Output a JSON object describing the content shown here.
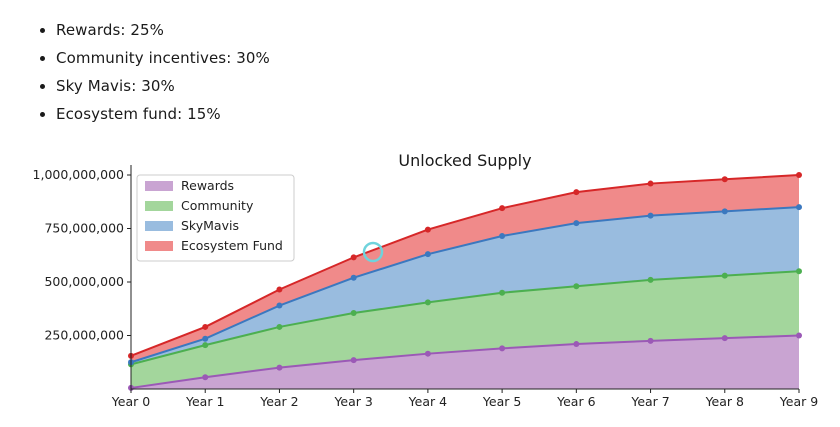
{
  "bullets": [
    {
      "label": "Rewards: 25%"
    },
    {
      "label": "Community incentives: 30%"
    },
    {
      "label": "Sky Mavis: 30%"
    },
    {
      "label": "Ecosystem fund: 15%"
    }
  ],
  "chart_data": {
    "type": "area",
    "stacked": true,
    "title": "Unlocked Supply",
    "xlabel": "",
    "ylabel": "",
    "categories": [
      "Year 0",
      "Year 1",
      "Year 2",
      "Year 3",
      "Year 4",
      "Year 5",
      "Year 6",
      "Year 7",
      "Year 8",
      "Year 9"
    ],
    "ylim": [
      0,
      1000000000
    ],
    "yticks": [
      250000000,
      500000000,
      750000000,
      1000000000
    ],
    "ytick_labels": [
      "250,000,000",
      "500,000,000",
      "750,000,000",
      "1,000,000,000"
    ],
    "grid": false,
    "legend_position": "top-left",
    "series": [
      {
        "name": "Rewards",
        "color": "#c9a4d2",
        "line_color": "#9b59b6",
        "values": [
          5000000,
          55000000,
          100000000,
          135000000,
          165000000,
          190000000,
          210000000,
          225000000,
          237500000,
          250000000
        ]
      },
      {
        "name": "Community",
        "color": "#a3d69c",
        "line_color": "#4caf50",
        "values": [
          110000000,
          150000000,
          190000000,
          220000000,
          240000000,
          260000000,
          270000000,
          285000000,
          292500000,
          300000000
        ]
      },
      {
        "name": "SkyMavis",
        "color": "#99bcdf",
        "line_color": "#3b78bf",
        "values": [
          10000000,
          30000000,
          100000000,
          165000000,
          225000000,
          265000000,
          295000000,
          300000000,
          300000000,
          300000000
        ]
      },
      {
        "name": "Ecosystem Fund",
        "color": "#f08a8a",
        "line_color": "#d62728",
        "values": [
          30000000,
          55000000,
          75000000,
          95000000,
          115000000,
          130000000,
          145000000,
          150000000,
          150000000,
          150000000
        ]
      }
    ]
  }
}
